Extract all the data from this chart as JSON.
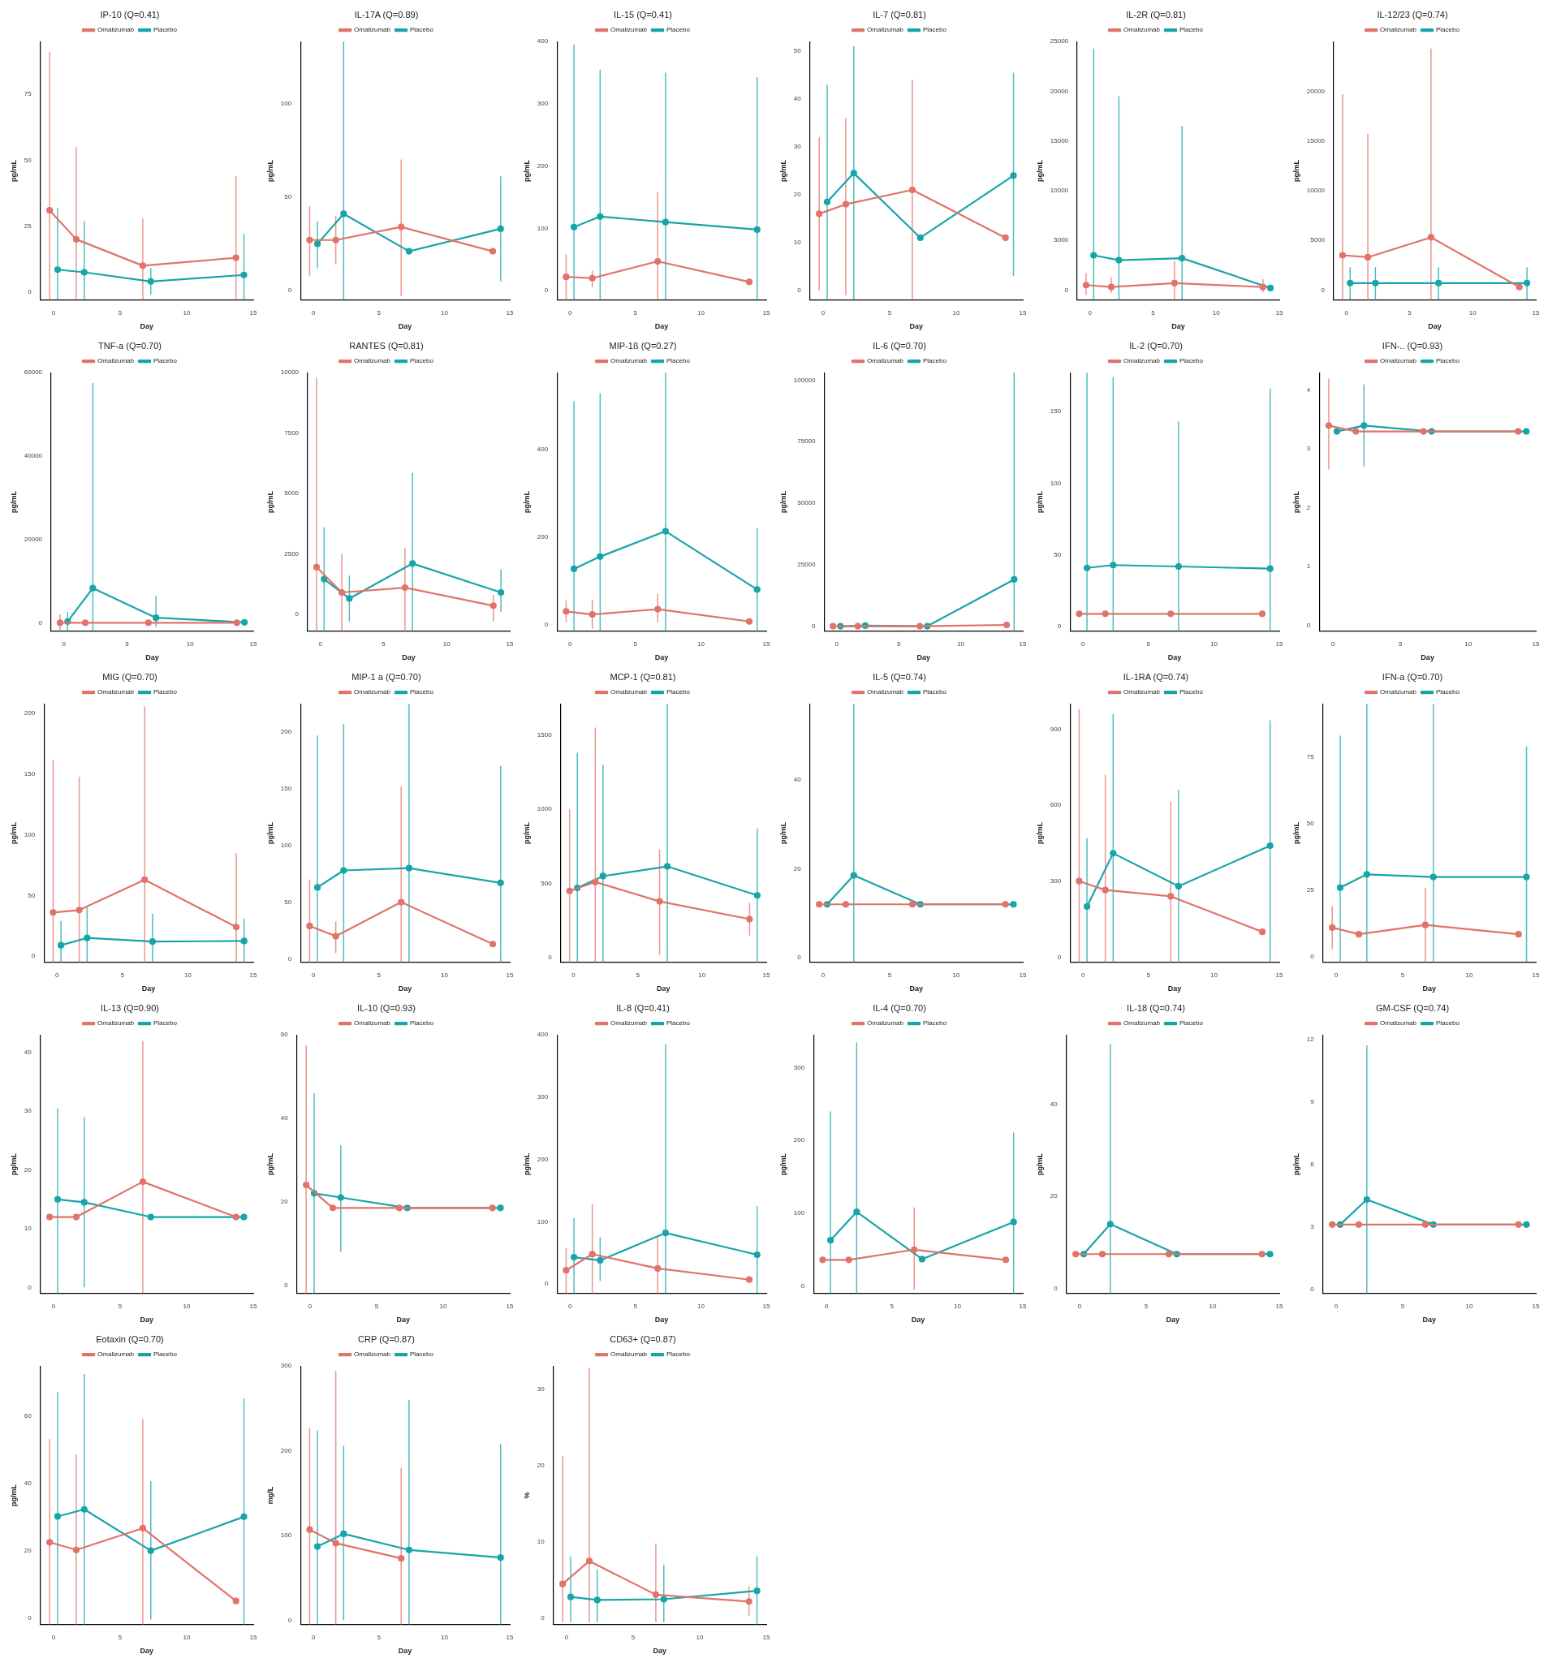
{
  "chart_data": [
    {
      "type": "line",
      "title": "IP-10 (Q=0.41)",
      "xlabel": "Day",
      "ylabel": "pg/mL",
      "xlim": [
        -1,
        15
      ],
      "xticks": [
        0,
        5,
        10,
        15
      ],
      "ylim": [
        -3,
        95
      ],
      "yticks": [
        0,
        25,
        50,
        75
      ],
      "legend": "top",
      "marker": "circle",
      "series": [
        {
          "name": "Omalizumab",
          "color": "#e0736a",
          "x": [
            -0.3,
            1.7,
            6.7,
            13.7
          ],
          "values": [
            31,
            20,
            10,
            13
          ],
          "errors": [
            [
              -3,
              91
            ],
            [
              -3,
              55
            ],
            [
              -3,
              28
            ],
            [
              -3,
              44
            ]
          ]
        },
        {
          "name": "Placebo",
          "color": "#17a5a9",
          "x": [
            0.3,
            2.3,
            7.3,
            14.3
          ],
          "values": [
            8.5,
            7.5,
            4,
            6.5
          ],
          "errors": [
            [
              -3,
              32
            ],
            [
              -3,
              27
            ],
            [
              -1,
              9
            ],
            [
              -3,
              22
            ]
          ]
        }
      ]
    },
    {
      "type": "line",
      "title": "IL-17A (Q=0.89)",
      "xlabel": "Day",
      "ylabel": "pg/mL",
      "xlim": [
        -1,
        15
      ],
      "xticks": [
        0,
        5,
        10,
        15
      ],
      "ylim": [
        -5,
        133
      ],
      "yticks": [
        0,
        50,
        100
      ],
      "legend": "top",
      "marker": "circle",
      "series": [
        {
          "name": "Omalizumab",
          "color": "#e0736a",
          "x": [
            -0.3,
            1.7,
            6.7,
            13.7
          ],
          "values": [
            27,
            27,
            34,
            21
          ],
          "errors": [
            [
              8,
              45
            ],
            [
              14,
              40
            ],
            [
              -3,
              70
            ],
            null
          ]
        },
        {
          "name": "Placebo",
          "color": "#17a5a9",
          "x": [
            0.3,
            2.3,
            7.3,
            14.3
          ],
          "values": [
            25,
            41,
            21,
            33
          ],
          "errors": [
            [
              12,
              37
            ],
            [
              -5,
              133
            ],
            null,
            [
              5,
              61
            ]
          ]
        }
      ]
    },
    {
      "type": "line",
      "title": "IL-15 (Q=0.41)",
      "xlabel": "Day",
      "ylabel": "pg/mL",
      "xlim": [
        -1,
        15
      ],
      "xticks": [
        0,
        5,
        10,
        15
      ],
      "ylim": [
        -15,
        400
      ],
      "yticks": [
        0,
        100,
        200,
        300,
        400
      ],
      "legend": "top",
      "marker": "circle",
      "series": [
        {
          "name": "Omalizumab",
          "color": "#e0736a",
          "x": [
            -0.3,
            1.7,
            6.7,
            13.7
          ],
          "values": [
            22,
            20,
            47,
            14
          ],
          "errors": [
            [
              -15,
              58
            ],
            [
              5,
              32
            ],
            [
              -15,
              158
            ],
            null
          ]
        },
        {
          "name": "Placebo",
          "color": "#17a5a9",
          "x": [
            0.3,
            2.3,
            7.3,
            14.3
          ],
          "values": [
            102,
            119,
            110,
            98
          ],
          "errors": [
            [
              -15,
              395
            ],
            [
              -15,
              355
            ],
            [
              -15,
              350
            ],
            [
              -15,
              343
            ]
          ]
        }
      ]
    },
    {
      "type": "line",
      "title": "IL-7 (Q=0.81)",
      "xlabel": "Day",
      "ylabel": "pg/mL",
      "xlim": [
        -1,
        15
      ],
      "xticks": [
        0,
        5,
        10,
        15
      ],
      "ylim": [
        -2,
        52
      ],
      "yticks": [
        0,
        10,
        20,
        30,
        40,
        50
      ],
      "legend": "top",
      "marker": "circle",
      "series": [
        {
          "name": "Omalizumab",
          "color": "#e0736a",
          "x": [
            -0.3,
            1.7,
            6.7,
            13.7
          ],
          "values": [
            16,
            18,
            21,
            11
          ],
          "errors": [
            [
              0,
              32
            ],
            [
              -1,
              36
            ],
            [
              -2,
              44
            ],
            null
          ]
        },
        {
          "name": "Placebo",
          "color": "#17a5a9",
          "x": [
            0.3,
            2.3,
            7.3,
            14.3
          ],
          "values": [
            18.5,
            24.5,
            11,
            24
          ],
          "errors": [
            [
              -2,
              43
            ],
            [
              -2,
              51
            ],
            null,
            [
              3,
              45.5
            ]
          ]
        }
      ]
    },
    {
      "type": "line",
      "title": "IL-2R (Q=0.81)",
      "xlabel": "Day",
      "ylabel": "pg/mL",
      "xlim": [
        -1,
        15
      ],
      "xticks": [
        0,
        5,
        10,
        15
      ],
      "ylim": [
        -1000,
        25000
      ],
      "yticks": [
        0,
        5000,
        10000,
        15000,
        20000,
        25000
      ],
      "legend": "top",
      "marker": "circle",
      "series": [
        {
          "name": "Omalizumab",
          "color": "#e0736a",
          "x": [
            -0.3,
            1.7,
            6.7,
            13.7
          ],
          "values": [
            500,
            300,
            700,
            300
          ],
          "errors": [
            [
              -500,
              1700
            ],
            [
              -300,
              1300
            ],
            [
              -1000,
              2900
            ],
            [
              -200,
              1100
            ]
          ]
        },
        {
          "name": "Placebo",
          "color": "#17a5a9",
          "x": [
            0.3,
            2.3,
            7.3,
            14.3
          ],
          "values": [
            3500,
            3000,
            3200,
            200
          ],
          "errors": [
            [
              -1000,
              24300
            ],
            [
              -1000,
              19500
            ],
            [
              -1000,
              16500
            ],
            null
          ]
        }
      ]
    },
    {
      "type": "line",
      "title": "IL-12/23 (Q=0.74)",
      "xlabel": "Day",
      "ylabel": "pg/mL",
      "xlim": [
        -1,
        15
      ],
      "xticks": [
        0,
        5,
        10,
        15
      ],
      "ylim": [
        -1000,
        25000
      ],
      "yticks": [
        0,
        5000,
        10000,
        15000,
        20000
      ],
      "legend": "top",
      "marker": "circle",
      "series": [
        {
          "name": "Omalizumab",
          "color": "#e0736a",
          "x": [
            -0.3,
            1.7,
            6.7,
            13.7
          ],
          "values": [
            3500,
            3300,
            5300,
            300
          ],
          "errors": [
            [
              -1000,
              19700
            ],
            [
              -1000,
              15700
            ],
            [
              -1000,
              24300
            ],
            null
          ]
        },
        {
          "name": "Placebo",
          "color": "#17a5a9",
          "x": [
            0.3,
            2.3,
            7.3,
            14.3
          ],
          "values": [
            700,
            700,
            700,
            700
          ],
          "errors": [
            [
              -1000,
              2300
            ],
            [
              -1000,
              2300
            ],
            [
              -1000,
              2300
            ],
            [
              -1000,
              2300
            ]
          ]
        }
      ]
    },
    {
      "type": "line",
      "title": "TNF-a (Q=0.70)",
      "xlabel": "Day",
      "ylabel": "pg/mL",
      "xlim": [
        -1,
        15
      ],
      "xticks": [
        0,
        5,
        10,
        15
      ],
      "ylim": [
        -2000,
        60000
      ],
      "yticks": [
        0,
        20000,
        40000,
        60000
      ],
      "legend": "top",
      "marker": "circle",
      "series": [
        {
          "name": "Omalizumab",
          "color": "#e0736a",
          "x": [
            -0.3,
            1.7,
            6.7,
            13.7
          ],
          "values": [
            0,
            0,
            0,
            0
          ],
          "errors": [
            [
              -2000,
              2000
            ],
            null,
            null,
            null
          ]
        },
        {
          "name": "Placebo",
          "color": "#17a5a9",
          "x": [
            0.3,
            2.3,
            7.3,
            14.3
          ],
          "values": [
            300,
            8300,
            1200,
            100
          ],
          "errors": [
            [
              -2000,
              2600
            ],
            [
              -2000,
              57500
            ],
            [
              -1000,
              6500
            ],
            null
          ]
        }
      ]
    },
    {
      "type": "line",
      "title": "RANTES (Q=0.81)",
      "xlabel": "Day",
      "ylabel": "pg/mL",
      "xlim": [
        -1,
        15
      ],
      "xticks": [
        0,
        5,
        10,
        15
      ],
      "ylim": [
        -700,
        10000
      ],
      "yticks": [
        0,
        2500,
        5000,
        7500,
        10000
      ],
      "legend": "top",
      "marker": "circle",
      "series": [
        {
          "name": "Omalizumab",
          "color": "#e0736a",
          "x": [
            -0.3,
            1.7,
            6.7,
            13.7
          ],
          "values": [
            1950,
            900,
            1100,
            350
          ],
          "errors": [
            [
              -700,
              9800
            ],
            [
              -700,
              2500
            ],
            [
              -700,
              2750
            ],
            [
              -300,
              800
            ]
          ]
        },
        {
          "name": "Placebo",
          "color": "#17a5a9",
          "x": [
            0.3,
            2.3,
            7.3,
            14.3
          ],
          "values": [
            1450,
            650,
            2100,
            900
          ],
          "errors": [
            [
              -700,
              3600
            ],
            [
              -300,
              1600
            ],
            [
              -700,
              5850
            ],
            [
              100,
              1850
            ]
          ]
        }
      ]
    },
    {
      "type": "line",
      "title": "MIP-1ß (Q=0.27)",
      "xlabel": "Day",
      "ylabel": "pg/mL",
      "xlim": [
        -1,
        15
      ],
      "xticks": [
        0,
        5,
        10,
        15
      ],
      "ylim": [
        -15,
        575
      ],
      "yticks": [
        0,
        200,
        400
      ],
      "legend": "top",
      "marker": "circle",
      "series": [
        {
          "name": "Omalizumab",
          "color": "#e0736a",
          "x": [
            -0.3,
            1.7,
            6.7,
            13.7
          ],
          "values": [
            30,
            23,
            35,
            7
          ],
          "errors": [
            [
              5,
              55
            ],
            [
              -10,
              57
            ],
            [
              5,
              70
            ],
            null
          ]
        },
        {
          "name": "Placebo",
          "color": "#17a5a9",
          "x": [
            0.3,
            2.3,
            7.3,
            14.3
          ],
          "values": [
            127,
            155,
            213,
            80
          ],
          "errors": [
            [
              -15,
              510
            ],
            [
              -15,
              528
            ],
            [
              -15,
              575
            ],
            [
              -15,
              220
            ]
          ]
        }
      ]
    },
    {
      "type": "line",
      "title": "IL-6 (Q=0.70)",
      "xlabel": "Day",
      "ylabel": "pg/mL",
      "xlim": [
        -1,
        15
      ],
      "xticks": [
        0,
        5,
        10,
        15
      ],
      "ylim": [
        -2000,
        103000
      ],
      "yticks": [
        0,
        25000,
        50000,
        75000,
        100000
      ],
      "legend": "top",
      "marker": "circle",
      "series": [
        {
          "name": "Omalizumab",
          "color": "#e0736a",
          "x": [
            -0.3,
            1.7,
            6.7,
            13.7
          ],
          "values": [
            0,
            0,
            0,
            500
          ]
        },
        {
          "name": "Placebo",
          "color": "#17a5a9",
          "x": [
            0.3,
            2.3,
            7.3,
            14.3
          ],
          "values": [
            0,
            200,
            0,
            19000
          ],
          "errors": [
            null,
            null,
            null,
            [
              -2000,
              103000
            ]
          ]
        }
      ]
    },
    {
      "type": "line",
      "title": "IL-2 (Q=0.70)",
      "xlabel": "Day",
      "ylabel": "pg/mL",
      "xlim": [
        -1,
        15
      ],
      "xticks": [
        0,
        5,
        10,
        15
      ],
      "ylim": [
        -3,
        177
      ],
      "yticks": [
        0,
        50,
        100,
        150
      ],
      "legend": "top",
      "marker": "circle",
      "series": [
        {
          "name": "Omalizumab",
          "color": "#e0736a",
          "x": [
            -0.3,
            1.7,
            6.7,
            13.7
          ],
          "values": [
            9,
            9,
            9,
            9
          ]
        },
        {
          "name": "Placebo",
          "color": "#17a5a9",
          "x": [
            0.3,
            2.3,
            7.3,
            14.3
          ],
          "values": [
            41,
            43,
            42,
            40.5
          ],
          "errors": [
            [
              -3,
              177
            ],
            [
              -3,
              174
            ],
            [
              -3,
              143
            ],
            [
              -3,
              166
            ]
          ]
        }
      ]
    },
    {
      "type": "line",
      "title": "IFN-.. (Q=0.93)",
      "xlabel": "Day",
      "ylabel": "pg/mL",
      "xlim": [
        -1,
        15
      ],
      "xticks": [
        0,
        5,
        10,
        15
      ],
      "ylim": [
        -0.1,
        4.3
      ],
      "yticks": [
        0,
        1,
        2,
        3,
        4
      ],
      "legend": "top",
      "marker": "circle",
      "series": [
        {
          "name": "Omalizumab",
          "color": "#e0736a",
          "x": [
            -0.3,
            1.7,
            6.7,
            13.7
          ],
          "values": [
            3.4,
            3.3,
            3.3,
            3.3
          ],
          "errors": [
            [
              2.65,
              4.2
            ],
            null,
            null,
            null
          ]
        },
        {
          "name": "Placebo",
          "color": "#17a5a9",
          "x": [
            0.3,
            2.3,
            7.3,
            14.3
          ],
          "values": [
            3.3,
            3.4,
            3.3,
            3.3
          ],
          "errors": [
            null,
            [
              2.7,
              4.1
            ],
            null,
            null
          ]
        }
      ]
    },
    {
      "type": "line",
      "title": "MIG (Q=0.70)",
      "xlabel": "Day",
      "ylabel": "pg/mL",
      "xlim": [
        -1,
        15
      ],
      "xticks": [
        0,
        5,
        10,
        15
      ],
      "ylim": [
        -5,
        208
      ],
      "yticks": [
        0,
        50,
        100,
        150,
        200
      ],
      "legend": "top",
      "marker": "circle",
      "series": [
        {
          "name": "Omalizumab",
          "color": "#e0736a",
          "x": [
            -0.3,
            1.7,
            6.7,
            13.7
          ],
          "values": [
            36,
            38,
            63,
            24
          ],
          "errors": [
            [
              -5,
              162
            ],
            [
              -5,
              148
            ],
            [
              -5,
              206
            ],
            [
              -5,
              85
            ]
          ]
        },
        {
          "name": "Placebo",
          "color": "#17a5a9",
          "x": [
            0.3,
            2.3,
            7.3,
            14.3
          ],
          "values": [
            9,
            15,
            12,
            12.5
          ],
          "errors": [
            [
              -5,
              29
            ],
            [
              -5,
              40
            ],
            [
              -5,
              35
            ],
            [
              -5,
              31
            ]
          ]
        }
      ]
    },
    {
      "type": "line",
      "title": "MIP-1 a (Q=0.70)",
      "xlabel": "Day",
      "ylabel": "pg/mL",
      "xlim": [
        -1,
        15
      ],
      "xticks": [
        0,
        5,
        10,
        15
      ],
      "ylim": [
        -3,
        225
      ],
      "yticks": [
        0,
        50,
        100,
        150,
        200
      ],
      "legend": "top",
      "marker": "circle",
      "series": [
        {
          "name": "Omalizumab",
          "color": "#e0736a",
          "x": [
            -0.3,
            1.7,
            6.7,
            13.7
          ],
          "values": [
            29,
            20,
            50,
            13
          ],
          "errors": [
            [
              -3,
              70
            ],
            [
              5,
              33
            ],
            [
              -3,
              152
            ],
            null
          ]
        },
        {
          "name": "Placebo",
          "color": "#17a5a9",
          "x": [
            0.3,
            2.3,
            7.3,
            14.3
          ],
          "values": [
            63,
            78,
            80,
            67
          ],
          "errors": [
            [
              -3,
              197
            ],
            [
              -3,
              207
            ],
            [
              -3,
              225
            ],
            [
              -3,
              170
            ]
          ]
        }
      ]
    },
    {
      "type": "line",
      "title": "MCP-1 (Q=0.81)",
      "xlabel": "Day",
      "ylabel": "pg/mL",
      "xlim": [
        -1,
        15
      ],
      "xticks": [
        0,
        5,
        10,
        15
      ],
      "ylim": [
        -30,
        1710
      ],
      "yticks": [
        0,
        500,
        1000,
        1500
      ],
      "legend": "top",
      "marker": "circle",
      "series": [
        {
          "name": "Omalizumab",
          "color": "#e0736a",
          "x": [
            -0.3,
            1.7,
            6.7,
            13.7
          ],
          "values": [
            450,
            510,
            380,
            260
          ],
          "errors": [
            [
              -30,
              1000
            ],
            [
              -30,
              1550
            ],
            [
              20,
              730
            ],
            [
              150,
              370
            ]
          ]
        },
        {
          "name": "Placebo",
          "color": "#17a5a9",
          "x": [
            0.3,
            2.3,
            7.3,
            14.3
          ],
          "values": [
            470,
            550,
            615,
            420
          ],
          "errors": [
            [
              -30,
              1380
            ],
            [
              -30,
              1300
            ],
            [
              -30,
              1710
            ],
            [
              -30,
              870
            ]
          ]
        }
      ]
    },
    {
      "type": "line",
      "title": "IL-5 (Q=0.74)",
      "xlabel": "Day",
      "ylabel": "pg/mL",
      "xlim": [
        -1,
        15
      ],
      "xticks": [
        0,
        5,
        10,
        15
      ],
      "ylim": [
        -1,
        57
      ],
      "yticks": [
        0,
        20,
        40
      ],
      "legend": "top",
      "marker": "circle",
      "series": [
        {
          "name": "Omalizumab",
          "color": "#e0736a",
          "x": [
            -0.3,
            1.7,
            6.7,
            13.7
          ],
          "values": [
            12,
            12,
            12,
            12
          ]
        },
        {
          "name": "Placebo",
          "color": "#17a5a9",
          "x": [
            0.3,
            2.3,
            7.3,
            14.3
          ],
          "values": [
            12,
            18.5,
            12,
            12
          ],
          "errors": [
            null,
            [
              -1,
              57
            ],
            null,
            null
          ]
        }
      ]
    },
    {
      "type": "line",
      "title": "IL-1RA (Q=0.74)",
      "xlabel": "Day",
      "ylabel": "pg/mL",
      "xlim": [
        -1,
        15
      ],
      "xticks": [
        0,
        5,
        10,
        15
      ],
      "ylim": [
        -20,
        1000
      ],
      "yticks": [
        0,
        300,
        600,
        900
      ],
      "legend": "top",
      "marker": "circle",
      "series": [
        {
          "name": "Omalizumab",
          "color": "#e0736a",
          "x": [
            -0.3,
            1.7,
            6.7,
            13.7
          ],
          "values": [
            300,
            265,
            240,
            100
          ],
          "errors": [
            [
              -20,
              980
            ],
            [
              -20,
              720
            ],
            [
              -20,
              615
            ],
            null
          ]
        },
        {
          "name": "Placebo",
          "color": "#17a5a9",
          "x": [
            0.3,
            2.3,
            7.3,
            14.3
          ],
          "values": [
            200,
            410,
            280,
            440
          ],
          "errors": [
            [
              -20,
              470
            ],
            [
              -20,
              960
            ],
            [
              -20,
              660
            ],
            [
              -20,
              935
            ]
          ]
        }
      ]
    },
    {
      "type": "line",
      "title": "IFN-a (Q=0.70)",
      "xlabel": "Day",
      "ylabel": "pg/mL",
      "xlim": [
        -1,
        15
      ],
      "xticks": [
        0,
        5,
        10,
        15
      ],
      "ylim": [
        -2,
        95
      ],
      "yticks": [
        0,
        25,
        50,
        75
      ],
      "legend": "top",
      "marker": "circle",
      "series": [
        {
          "name": "Omalizumab",
          "color": "#e0736a",
          "x": [
            -0.3,
            1.7,
            6.7,
            13.7
          ],
          "values": [
            11,
            8.5,
            12,
            8.5
          ],
          "errors": [
            [
              3,
              19
            ],
            null,
            [
              -2,
              26
            ],
            null
          ]
        },
        {
          "name": "Placebo",
          "color": "#17a5a9",
          "x": [
            0.3,
            2.3,
            7.3,
            14.3
          ],
          "values": [
            26,
            31,
            30,
            30
          ],
          "errors": [
            [
              -2,
              83
            ],
            [
              -2,
              95
            ],
            [
              -2,
              95
            ],
            [
              -2,
              79
            ]
          ]
        }
      ]
    },
    {
      "type": "line",
      "title": "IL-13 (Q=0.90)",
      "xlabel": "Day",
      "ylabel": "pg/mL",
      "xlim": [
        -1,
        15
      ],
      "xticks": [
        0,
        5,
        10,
        15
      ],
      "ylim": [
        -1,
        43
      ],
      "yticks": [
        0,
        10,
        20,
        30,
        40
      ],
      "legend": "top",
      "marker": "circle",
      "series": [
        {
          "name": "Omalizumab",
          "color": "#e0736a",
          "x": [
            -0.3,
            1.7,
            6.7,
            13.7
          ],
          "values": [
            12,
            12,
            18,
            12
          ],
          "errors": [
            null,
            null,
            [
              -1,
              42
            ],
            null
          ]
        },
        {
          "name": "Placebo",
          "color": "#17a5a9",
          "x": [
            0.3,
            2.3,
            7.3,
            14.3
          ],
          "values": [
            15,
            14.5,
            12,
            12
          ],
          "errors": [
            [
              -1,
              30.5
            ],
            [
              0,
              29
            ],
            null,
            null
          ]
        }
      ]
    },
    {
      "type": "line",
      "title": "IL-10 (Q=0.93)",
      "xlabel": "Day",
      "ylabel": "pg/mL",
      "xlim": [
        -1,
        15
      ],
      "xticks": [
        0,
        5,
        10,
        15
      ],
      "ylim": [
        -2,
        60
      ],
      "yticks": [
        0,
        20,
        40,
        60
      ],
      "legend": "top",
      "marker": "circle",
      "series": [
        {
          "name": "Omalizumab",
          "color": "#e0736a",
          "x": [
            -0.3,
            1.7,
            6.7,
            13.7
          ],
          "values": [
            24,
            18.5,
            18.5,
            18.5
          ],
          "errors": [
            [
              -2,
              57.5
            ],
            null,
            null,
            null
          ]
        },
        {
          "name": "Placebo",
          "color": "#17a5a9",
          "x": [
            0.3,
            2.3,
            7.3,
            14.3
          ],
          "values": [
            22,
            21,
            18.5,
            18.5
          ],
          "errors": [
            [
              -2,
              46
            ],
            [
              8,
              33.5
            ],
            null,
            null
          ]
        }
      ]
    },
    {
      "type": "line",
      "title": "IL-8 (Q=0.41)",
      "xlabel": "Day",
      "ylabel": "pg/mL",
      "xlim": [
        -1,
        15
      ],
      "xticks": [
        0,
        5,
        10,
        15
      ],
      "ylim": [
        -15,
        400
      ],
      "yticks": [
        0,
        100,
        200,
        300,
        400
      ],
      "legend": "top",
      "marker": "circle",
      "series": [
        {
          "name": "Omalizumab",
          "color": "#e0736a",
          "x": [
            -0.3,
            1.7,
            6.7,
            13.7
          ],
          "values": [
            22,
            48,
            25,
            7
          ],
          "errors": [
            [
              -15,
              58
            ],
            [
              -15,
              128
            ],
            [
              -15,
              75
            ],
            null
          ]
        },
        {
          "name": "Placebo",
          "color": "#17a5a9",
          "x": [
            0.3,
            2.3,
            7.3,
            14.3
          ],
          "values": [
            43,
            38,
            82,
            47
          ],
          "errors": [
            [
              -15,
              106
            ],
            [
              5,
              75
            ],
            [
              -15,
              385
            ],
            [
              -15,
              125
            ]
          ]
        }
      ]
    },
    {
      "type": "line",
      "title": "IL-4 (Q=0.70)",
      "xlabel": "Day",
      "ylabel": "pg/mL",
      "xlim": [
        -1,
        15
      ],
      "xticks": [
        0,
        5,
        10,
        15
      ],
      "ylim": [
        -10,
        345
      ],
      "yticks": [
        0,
        100,
        200,
        300
      ],
      "legend": "top",
      "marker": "circle",
      "series": [
        {
          "name": "Omalizumab",
          "color": "#e0736a",
          "x": [
            -0.3,
            1.7,
            6.7,
            13.7
          ],
          "values": [
            36,
            36,
            50,
            36
          ],
          "errors": [
            null,
            null,
            [
              -5,
              108
            ],
            null
          ]
        },
        {
          "name": "Placebo",
          "color": "#17a5a9",
          "x": [
            0.3,
            2.3,
            7.3,
            14.3
          ],
          "values": [
            63,
            102,
            37,
            88
          ],
          "errors": [
            [
              -10,
              240
            ],
            [
              -10,
              335
            ],
            null,
            [
              -10,
              211
            ]
          ]
        }
      ]
    },
    {
      "type": "line",
      "title": "IL-18 (Q=0.74)",
      "xlabel": "Day",
      "ylabel": "pg/mL",
      "xlim": [
        -1,
        15
      ],
      "xticks": [
        0,
        5,
        10,
        15
      ],
      "ylim": [
        -1,
        55
      ],
      "yticks": [
        0,
        20,
        40
      ],
      "legend": "top",
      "marker": "circle",
      "series": [
        {
          "name": "Omalizumab",
          "color": "#e0736a",
          "x": [
            -0.3,
            1.7,
            6.7,
            13.7
          ],
          "values": [
            7.5,
            7.5,
            7.5,
            7.5
          ]
        },
        {
          "name": "Placebo",
          "color": "#17a5a9",
          "x": [
            0.3,
            2.3,
            7.3,
            14.3
          ],
          "values": [
            7.5,
            14,
            7.5,
            7.5
          ],
          "errors": [
            null,
            [
              -1,
              53
            ],
            null,
            null
          ]
        }
      ]
    },
    {
      "type": "line",
      "title": "GM-CSF (Q=0.74)",
      "xlabel": "Day",
      "ylabel": "pg/mL",
      "xlim": [
        -1,
        15
      ],
      "xticks": [
        0,
        5,
        10,
        15
      ],
      "ylim": [
        -0.2,
        12.2
      ],
      "yticks": [
        0,
        3,
        6,
        9,
        12
      ],
      "legend": "top",
      "marker": "circle",
      "series": [
        {
          "name": "Omalizumab",
          "color": "#e0736a",
          "x": [
            -0.3,
            1.7,
            6.7,
            13.7
          ],
          "values": [
            3.1,
            3.1,
            3.1,
            3.1
          ]
        },
        {
          "name": "Placebo",
          "color": "#17a5a9",
          "x": [
            0.3,
            2.3,
            7.3,
            14.3
          ],
          "values": [
            3.1,
            4.3,
            3.1,
            3.1
          ],
          "errors": [
            null,
            [
              -0.2,
              11.7
            ],
            null,
            null
          ]
        }
      ]
    },
    {
      "type": "line",
      "title": "Eotaxin (Q=0.70)",
      "xlabel": "Day",
      "ylabel": "pg/mL",
      "xlim": [
        -1,
        15
      ],
      "xticks": [
        0,
        5,
        10,
        15
      ],
      "ylim": [
        -2,
        75
      ],
      "yticks": [
        0,
        20,
        40,
        60
      ],
      "legend": "top",
      "marker": "circle",
      "series": [
        {
          "name": "Omalizumab",
          "color": "#e0736a",
          "x": [
            -0.3,
            1.7,
            6.7,
            13.7
          ],
          "values": [
            22.5,
            20.2,
            26.7,
            5
          ],
          "errors": [
            [
              -2,
              53.2
            ],
            [
              -2,
              48.7
            ],
            [
              -2,
              59.2
            ],
            null
          ]
        },
        {
          "name": "Placebo",
          "color": "#17a5a9",
          "x": [
            0.3,
            2.3,
            7.3,
            14.3
          ],
          "values": [
            30.2,
            32.3,
            20,
            30.1
          ],
          "errors": [
            [
              -2,
              67.3
            ],
            [
              -2,
              72.6
            ],
            [
              -0.5,
              40.7
            ],
            [
              -2,
              65.3
            ]
          ]
        }
      ]
    },
    {
      "type": "line",
      "title": "CRP (Q=0.87)",
      "xlabel": "Day",
      "ylabel": "mg/L",
      "xlim": [
        -1,
        15
      ],
      "xticks": [
        0,
        5,
        10,
        15
      ],
      "ylim": [
        -5,
        300
      ],
      "yticks": [
        0,
        100,
        200,
        300
      ],
      "legend": "top",
      "marker": "circle",
      "series": [
        {
          "name": "Omalizumab",
          "color": "#e0736a",
          "x": [
            -0.3,
            1.7,
            6.7
          ],
          "values": [
            107,
            91,
            73
          ],
          "errors": [
            [
              -5,
              227
            ],
            [
              -5,
              294
            ],
            [
              -5,
              180
            ]
          ]
        },
        {
          "name": "Placebo",
          "color": "#17a5a9",
          "x": [
            0.3,
            2.3,
            7.3,
            14.3
          ],
          "values": [
            87,
            102,
            83,
            74
          ],
          "errors": [
            [
              -5,
              224
            ],
            [
              0,
              206
            ],
            [
              -5,
              260
            ],
            [
              -5,
              208
            ]
          ]
        }
      ]
    },
    {
      "type": "line",
      "title": "CD63+ (Q=0.87)",
      "xlabel": "Day",
      "ylabel": "%",
      "xlim": [
        -1,
        15
      ],
      "xticks": [
        0,
        5,
        10,
        15
      ],
      "ylim": [
        -0.8,
        33
      ],
      "yticks": [
        0,
        10,
        20,
        30
      ],
      "legend": "top",
      "marker": "circle",
      "series": [
        {
          "name": "Omalizumab",
          "color": "#e0736a",
          "x": [
            -0.3,
            1.7,
            6.7,
            13.7
          ],
          "values": [
            4.5,
            7.5,
            3.1,
            2.2
          ],
          "errors": [
            [
              -0.5,
              21.2
            ],
            [
              -0.5,
              32.7
            ],
            [
              -0.5,
              9.8
            ],
            [
              0.3,
              4.2
            ]
          ]
        },
        {
          "name": "Placebo",
          "color": "#17a5a9",
          "x": [
            0.3,
            2.3,
            7.3,
            14.3
          ],
          "values": [
            2.8,
            2.4,
            2.5,
            3.6
          ],
          "errors": [
            [
              -0.5,
              8.1
            ],
            [
              -0.5,
              6.4
            ],
            [
              -0.5,
              7
            ],
            [
              -0.8,
              8.1
            ]
          ]
        }
      ]
    }
  ]
}
